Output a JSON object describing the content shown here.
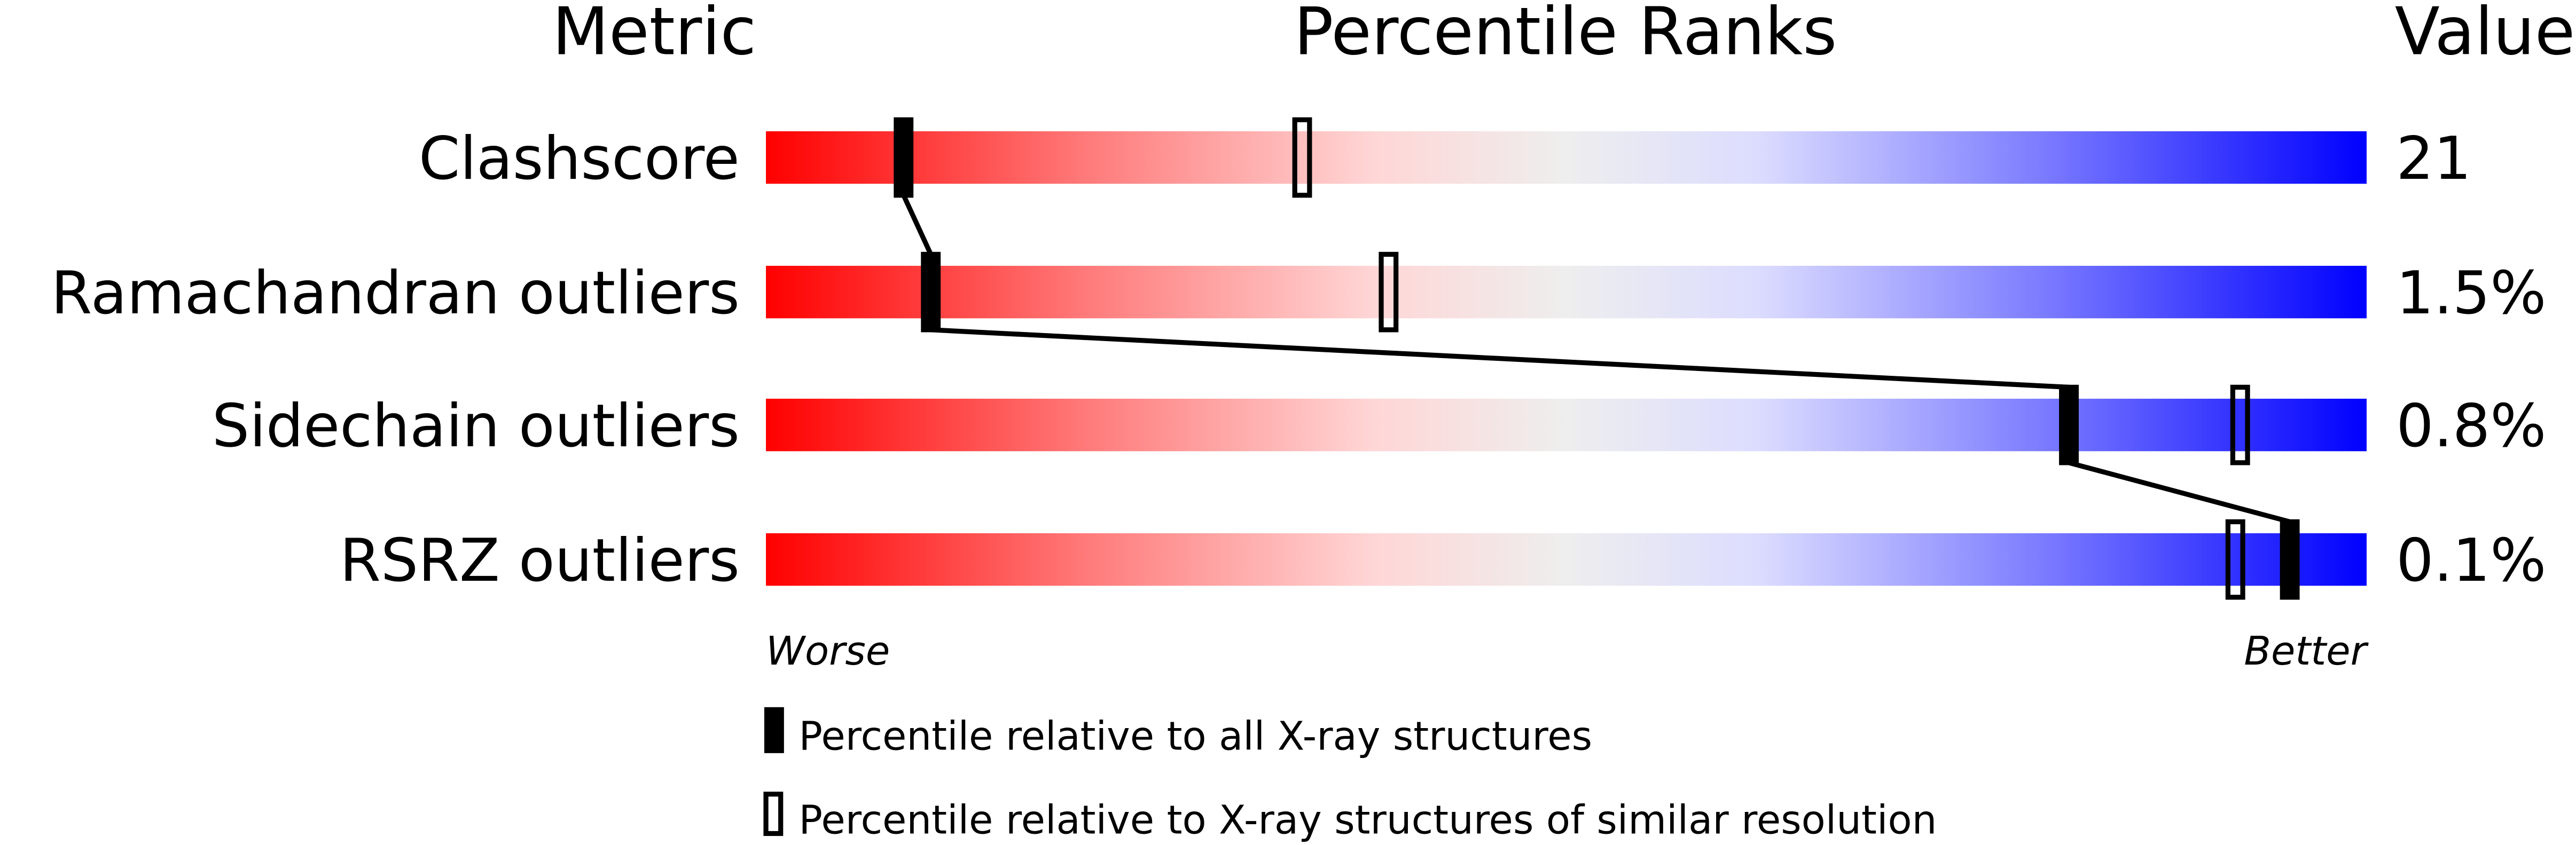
{
  "chart_data": {
    "type": "percentile",
    "headers": {
      "metric": "Metric",
      "ranks": "Percentile Ranks",
      "value": "Value"
    },
    "xlim": [
      0,
      100
    ],
    "axis_ends": {
      "left": "Worse",
      "right": "Better"
    },
    "gradient_colors": [
      "#ff0000",
      "#eeeeee",
      "#0000ff"
    ],
    "metrics": [
      {
        "name": "Clashscore",
        "value": "21",
        "percentile_all": 8.6,
        "percentile_similar": 33.5
      },
      {
        "name": "Ramachandran outliers",
        "value": "1.5%",
        "percentile_all": 10.3,
        "percentile_similar": 38.9
      },
      {
        "name": "Sidechain outliers",
        "value": "0.8%",
        "percentile_all": 81.4,
        "percentile_similar": 92.1
      },
      {
        "name": "RSRZ outliers",
        "value": "0.1%",
        "percentile_all": 95.2,
        "percentile_similar": 91.8
      }
    ],
    "legend": {
      "all": "Percentile relative to all X-ray structures",
      "similar": "Percentile relative to X-ray structures of similar resolution"
    }
  }
}
